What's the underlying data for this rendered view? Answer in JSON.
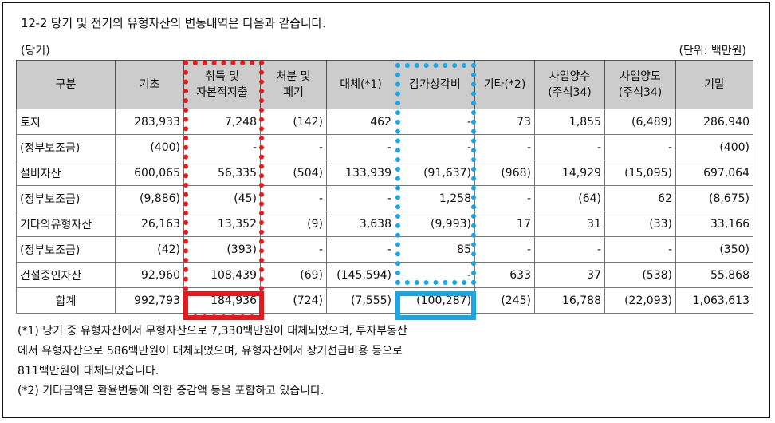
{
  "doc": {
    "title": "12-2 당기 및 전기의 유형자산의 변동내역은 다음과 같습니다.",
    "period_label": "(당기)",
    "unit_label": "(단위: 백만원)"
  },
  "table": {
    "headers": [
      [
        "구분"
      ],
      [
        "기초"
      ],
      [
        "취득 및",
        "자본적지출"
      ],
      [
        "처분 및",
        "폐기"
      ],
      [
        "대체(*1)"
      ],
      [
        "감가상각비"
      ],
      [
        "기타(*2)"
      ],
      [
        "사업양수",
        "(주석34)"
      ],
      [
        "사업양도",
        "(주석34)"
      ],
      [
        "기말"
      ]
    ],
    "rows": [
      [
        "토지",
        "283,933",
        "7,248",
        "(142)",
        "462",
        "-",
        "73",
        "1,855",
        "(6,489)",
        "286,940"
      ],
      [
        "(정부보조금)",
        "(400)",
        "-",
        "-",
        "-",
        "-",
        "-",
        "-",
        "-",
        "(400)"
      ],
      [
        "설비자산",
        "600,065",
        "56,335",
        "(504)",
        "133,939",
        "(91,637)",
        "(968)",
        "14,929",
        "(15,095)",
        "697,064"
      ],
      [
        "(정부보조금)",
        "(9,886)",
        "(45)",
        "-",
        "-",
        "1,258",
        "-",
        "(64)",
        "62",
        "(8,675)"
      ],
      [
        "기타의유형자산",
        "26,163",
        "13,352",
        "(9)",
        "3,638",
        "(9,993)",
        "17",
        "31",
        "(33)",
        "33,166"
      ],
      [
        "(정부보조금)",
        "(42)",
        "(393)",
        "-",
        "-",
        "85",
        "-",
        "-",
        "-",
        "(350)"
      ],
      [
        "건설중인자산",
        "92,960",
        "108,439",
        "(69)",
        "(145,594)",
        "-",
        "633",
        "37",
        "(538)",
        "55,868"
      ]
    ],
    "total": [
      "합계",
      "992,793",
      "184,936",
      "(724)",
      "(7,555)",
      "(100,287)",
      "(245)",
      "16,788",
      "(22,093)",
      "1,063,613"
    ]
  },
  "notes": [
    "(*1) 당기 중 유형자산에서 무형자산으로 7,330백만원이 대체되었으며, 투자부동산",
    "에서 유형자산으로 586백만원이 대체되었으며, 유형자산에서 장기선급비용 등으로",
    "811백만원이 대체되었습니다.",
    "(*2) 기타금액은 환율변동에 의한 증감액 등을 포함하고 있습니다."
  ],
  "highlights": {
    "red_color": "#e8181b",
    "blue_color": "#1aa6e6"
  }
}
